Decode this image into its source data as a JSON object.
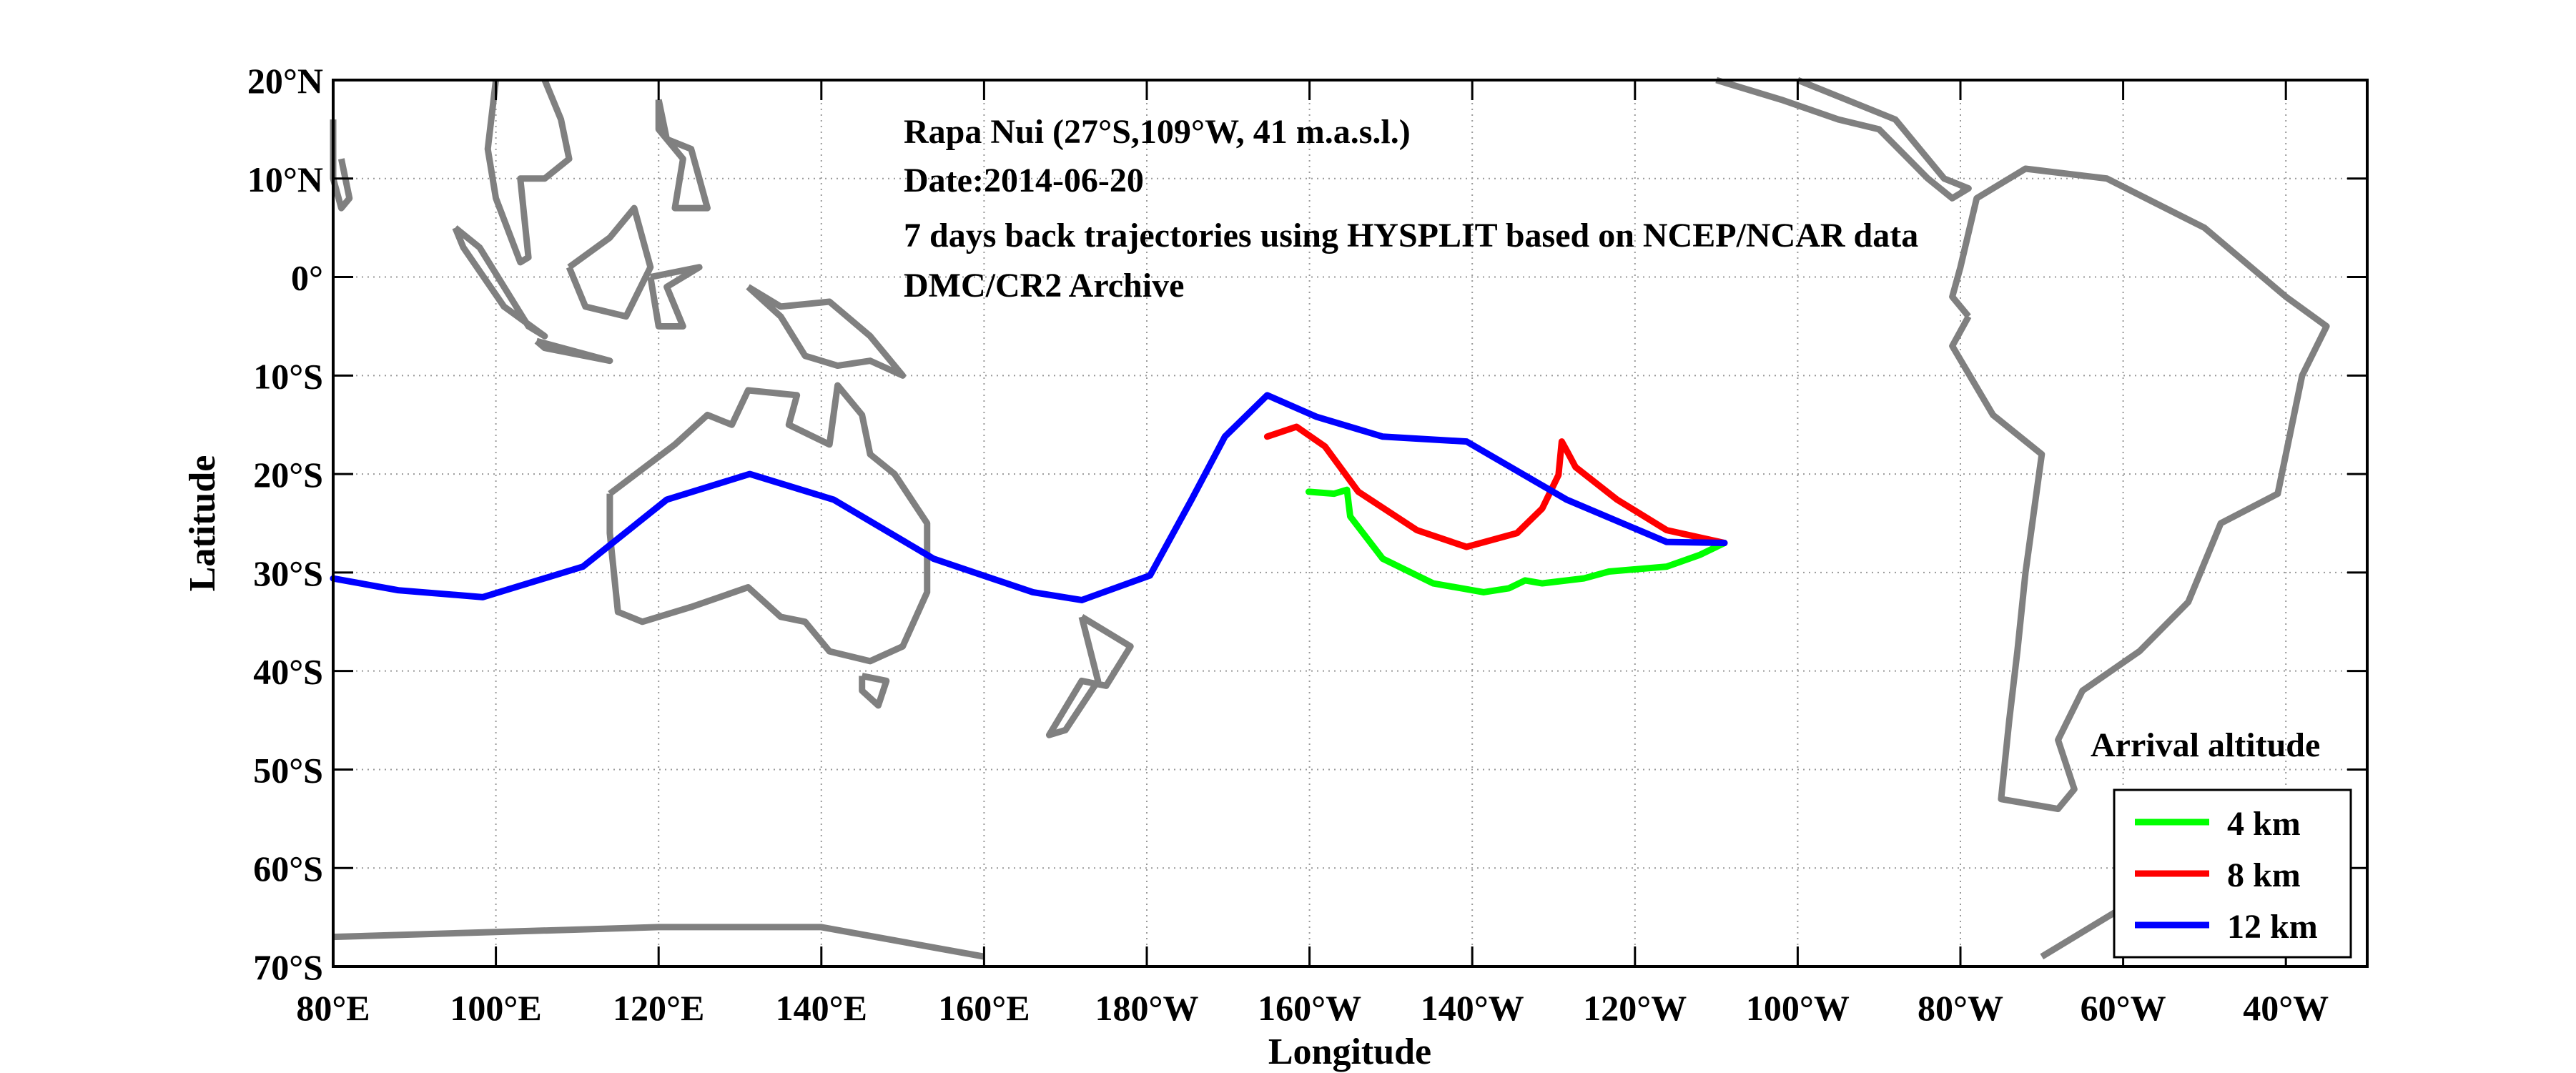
{
  "chart_data": {
    "type": "map-trajectory",
    "annotation": [
      "Rapa Nui (27°S,109°W, 41 m.a.s.l.)",
      "Date:2014-06-20",
      "7 days back trajectories using HYSPLIT based on NCEP/NCAR data",
      "DMC/CR2 Archive"
    ],
    "xlabel": "Longitude",
    "ylabel": "Latitude",
    "xlim": [
      80,
      330
    ],
    "ylim": [
      -70,
      20
    ],
    "grid": true,
    "x_ticks": [
      {
        "v": 80,
        "label": "80°E"
      },
      {
        "v": 100,
        "label": "100°E"
      },
      {
        "v": 120,
        "label": "120°E"
      },
      {
        "v": 140,
        "label": "140°E"
      },
      {
        "v": 160,
        "label": "160°E"
      },
      {
        "v": 180,
        "label": "180°W"
      },
      {
        "v": 200,
        "label": "160°W"
      },
      {
        "v": 220,
        "label": "140°W"
      },
      {
        "v": 240,
        "label": "120°W"
      },
      {
        "v": 260,
        "label": "100°W"
      },
      {
        "v": 280,
        "label": "80°W"
      },
      {
        "v": 300,
        "label": "60°W"
      },
      {
        "v": 320,
        "label": "40°W"
      }
    ],
    "y_ticks": [
      {
        "v": 20,
        "label": "20°N"
      },
      {
        "v": 10,
        "label": "10°N"
      },
      {
        "v": 0,
        "label": "0°"
      },
      {
        "v": -10,
        "label": "10°S"
      },
      {
        "v": -20,
        "label": "20°S"
      },
      {
        "v": -30,
        "label": "30°S"
      },
      {
        "v": -40,
        "label": "40°S"
      },
      {
        "v": -50,
        "label": "50°S"
      },
      {
        "v": -60,
        "label": "60°S"
      },
      {
        "v": -70,
        "label": "70°S"
      }
    ],
    "legend": {
      "title": "Arrival altitude",
      "placement": "bottom-right"
    },
    "series": [
      {
        "name": "4 km",
        "color": "#00ff00",
        "points": [
          [
            199.9,
            -21.8
          ],
          [
            203,
            -22
          ],
          [
            204.6,
            -21.6
          ],
          [
            205,
            -24.3
          ],
          [
            209,
            -28.6
          ],
          [
            215.2,
            -31.1
          ],
          [
            221.4,
            -32
          ],
          [
            224.5,
            -31.6
          ],
          [
            226.5,
            -30.8
          ],
          [
            228.6,
            -31.1
          ],
          [
            233.7,
            -30.6
          ],
          [
            236.8,
            -29.9
          ],
          [
            243.9,
            -29.4
          ],
          [
            248,
            -28.2
          ],
          [
            251,
            -27
          ]
        ]
      },
      {
        "name": "8 km",
        "color": "#ff0000",
        "points": [
          [
            194.8,
            -16.2
          ],
          [
            198.4,
            -15.2
          ],
          [
            201.9,
            -17.2
          ],
          [
            206,
            -21.8
          ],
          [
            213.2,
            -25.7
          ],
          [
            219.3,
            -27.4
          ],
          [
            225.5,
            -26
          ],
          [
            228.6,
            -23.5
          ],
          [
            230.6,
            -20.1
          ],
          [
            231,
            -16.7
          ],
          [
            231.6,
            -17.6
          ],
          [
            232.7,
            -19.3
          ],
          [
            237.8,
            -22.6
          ],
          [
            243.9,
            -25.7
          ],
          [
            251,
            -27
          ]
        ]
      },
      {
        "name": "12 km",
        "color": "#0000ff",
        "points": [
          [
            80,
            -30.6
          ],
          [
            88,
            -31.8
          ],
          [
            98.4,
            -32.5
          ],
          [
            110.7,
            -29.4
          ],
          [
            121,
            -22.6
          ],
          [
            131.2,
            -20
          ],
          [
            141.5,
            -22.6
          ],
          [
            153.8,
            -28.6
          ],
          [
            166,
            -32
          ],
          [
            172,
            -32.8
          ],
          [
            180.4,
            -30.3
          ],
          [
            185.5,
            -22.6
          ],
          [
            189.6,
            -16.2
          ],
          [
            194.8,
            -12
          ],
          [
            200.9,
            -14.2
          ],
          [
            209,
            -16.2
          ],
          [
            219.3,
            -16.7
          ],
          [
            231.6,
            -22.6
          ],
          [
            243.9,
            -26.9
          ],
          [
            251,
            -27
          ]
        ]
      }
    ],
    "coastline_color": "#808080",
    "coastlines": [
      [
        [
          114,
          -22
        ],
        [
          114,
          -26
        ],
        [
          115,
          -34
        ],
        [
          118,
          -35
        ],
        [
          124,
          -33.5
        ],
        [
          131,
          -31.5
        ],
        [
          135,
          -34.5
        ],
        [
          138,
          -35
        ],
        [
          141,
          -38
        ],
        [
          146,
          -39
        ],
        [
          150,
          -37.5
        ],
        [
          153,
          -32
        ],
        [
          153,
          -25
        ],
        [
          149,
          -20
        ],
        [
          146,
          -18
        ],
        [
          145,
          -14
        ],
        [
          142,
          -11
        ],
        [
          141,
          -17
        ],
        [
          136,
          -15
        ],
        [
          137,
          -12
        ],
        [
          131,
          -11.5
        ],
        [
          129,
          -15
        ],
        [
          126,
          -14
        ],
        [
          122,
          -17
        ],
        [
          114,
          -22
        ]
      ],
      [
        [
          145,
          -40.5
        ],
        [
          148,
          -41
        ],
        [
          147,
          -43.5
        ],
        [
          145,
          -42
        ],
        [
          145,
          -40.5
        ]
      ],
      [
        [
          172,
          -34.5
        ],
        [
          178,
          -37.5
        ],
        [
          175,
          -41.5
        ],
        [
          172,
          -41
        ],
        [
          168,
          -46.5
        ],
        [
          170,
          -46
        ],
        [
          174,
          -41
        ],
        [
          172,
          -34.5
        ]
      ],
      [
        [
          100,
          20
        ],
        [
          99,
          13
        ],
        [
          100,
          8
        ],
        [
          103,
          1.5
        ],
        [
          104,
          2
        ],
        [
          103,
          10
        ],
        [
          106,
          10
        ],
        [
          109,
          12
        ],
        [
          108,
          16
        ],
        [
          106,
          20
        ]
      ],
      [
        [
          95,
          5
        ],
        [
          98,
          3
        ],
        [
          104,
          -5
        ],
        [
          106,
          -6
        ],
        [
          101,
          -3
        ],
        [
          96,
          3
        ],
        [
          95,
          5
        ]
      ],
      [
        [
          109,
          1
        ],
        [
          111,
          -3
        ],
        [
          116,
          -4
        ],
        [
          119,
          1
        ],
        [
          117,
          7
        ],
        [
          114,
          4
        ],
        [
          109,
          1
        ]
      ],
      [
        [
          105,
          -6.5
        ],
        [
          114,
          -8.5
        ],
        [
          106,
          -7.2
        ],
        [
          105,
          -6.5
        ]
      ],
      [
        [
          119,
          0
        ],
        [
          125,
          1
        ],
        [
          121,
          -1
        ],
        [
          123,
          -5
        ],
        [
          120,
          -5
        ],
        [
          119,
          0
        ]
      ],
      [
        [
          120,
          18
        ],
        [
          121,
          14
        ],
        [
          124,
          13
        ],
        [
          126,
          7
        ],
        [
          122,
          7
        ],
        [
          123,
          12
        ],
        [
          120,
          15
        ],
        [
          120,
          18
        ]
      ],
      [
        [
          131,
          -1
        ],
        [
          135,
          -3
        ],
        [
          141,
          -2.5
        ],
        [
          146,
          -6
        ],
        [
          150,
          -10
        ],
        [
          146,
          -8.5
        ],
        [
          142,
          -9
        ],
        [
          138,
          -8
        ],
        [
          135,
          -4
        ],
        [
          131,
          -1
        ]
      ],
      [
        [
          80,
          16
        ],
        [
          80,
          10
        ],
        [
          81,
          7
        ],
        [
          82,
          8
        ],
        [
          81,
          12
        ]
      ],
      [
        [
          80,
          -67
        ],
        [
          100,
          -66.5
        ],
        [
          120,
          -66
        ],
        [
          140,
          -66
        ],
        [
          160,
          -69
        ]
      ],
      [
        [
          250,
          20
        ],
        [
          258,
          18
        ],
        [
          265,
          16
        ],
        [
          270,
          15
        ],
        [
          276,
          10
        ],
        [
          279,
          8
        ],
        [
          281,
          9
        ],
        [
          278,
          10
        ],
        [
          272,
          16
        ],
        [
          260,
          20
        ]
      ],
      [
        [
          281,
          -4
        ],
        [
          279,
          -2
        ],
        [
          280,
          1
        ],
        [
          282,
          8
        ],
        [
          288,
          11
        ],
        [
          298,
          10
        ],
        [
          310,
          5
        ],
        [
          320,
          -2
        ],
        [
          325,
          -5
        ],
        [
          322,
          -10
        ],
        [
          319,
          -22
        ],
        [
          312,
          -25
        ],
        [
          308,
          -33
        ],
        [
          302,
          -38
        ],
        [
          295,
          -42
        ],
        [
          292,
          -47
        ],
        [
          294,
          -52
        ],
        [
          292,
          -54
        ],
        [
          285,
          -53
        ],
        [
          286,
          -45
        ],
        [
          287,
          -38
        ],
        [
          288,
          -30
        ],
        [
          290,
          -18
        ],
        [
          284,
          -14
        ],
        [
          279,
          -7
        ],
        [
          281,
          -4
        ]
      ],
      [
        [
          290,
          -69
        ],
        [
          300,
          -64
        ],
        [
          305,
          -64.5
        ]
      ]
    ]
  }
}
